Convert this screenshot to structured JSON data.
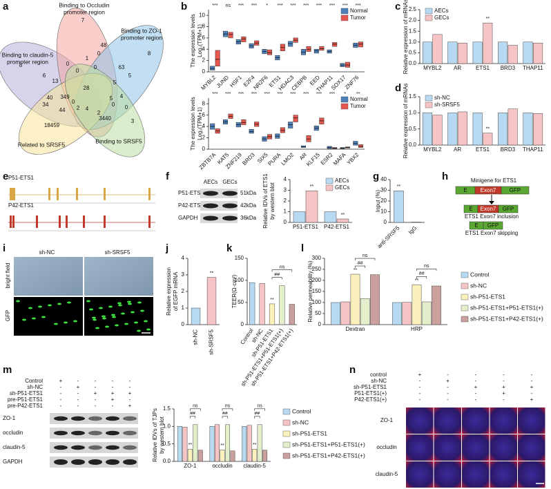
{
  "panel_labels": [
    "a",
    "b",
    "c",
    "d",
    "e",
    "f",
    "g",
    "h",
    "i",
    "j",
    "k",
    "l",
    "m",
    "n"
  ],
  "venn": {
    "sets": [
      [
        "Binding to Occludin",
        "promoter region"
      ],
      [
        "Binding to ZO-1",
        "promoter region"
      ],
      [
        "Binding to claudin-5",
        "promoter region"
      ],
      [
        "Related to SRSF5"
      ],
      [
        "Binding to SRSF5"
      ]
    ],
    "counts": [
      7,
      8,
      8,
      3,
      18459,
      0,
      1,
      0,
      48,
      6,
      13,
      0,
      0,
      63,
      5,
      5,
      28,
      40,
      349,
      5,
      4,
      0,
      34,
      44,
      2,
      4,
      2,
      3440,
      0,
      0
    ]
  },
  "e": {
    "tracks": [
      "P51-ETS1",
      "P42-ETS1"
    ]
  },
  "f_blot": {
    "columns": [
      "AECs",
      "GECs"
    ],
    "rows": [
      [
        "P51-ETS1",
        "51kDa"
      ],
      [
        "P42-ETS1",
        "42kDa"
      ],
      [
        "GAPDH",
        "36kDa"
      ]
    ]
  },
  "h": {
    "title": "Minigene for ETS1",
    "exon": "E",
    "target": "Exon7",
    "reporter": "GFP",
    "inclusion": "ETS1 Exon7 inclusion",
    "skipping": "ETS1 Exon7 skipping"
  },
  "i": {
    "columns": [
      "sh-NC",
      "sh-SRSF5"
    ],
    "rows": [
      "bright field",
      "GFP"
    ]
  },
  "m_blot": {
    "conditions": [
      "Control",
      "sh-NC",
      "sh-P51-ETS1",
      "pre-P51-ETS1",
      "pre-P42-ETS1"
    ],
    "signs": [
      [
        "+",
        "-",
        "-",
        "-",
        "-"
      ],
      [
        "-",
        "+",
        "-",
        "-",
        "-"
      ],
      [
        "-",
        "-",
        "+",
        "+",
        "+"
      ],
      [
        "-",
        "-",
        "-",
        "+",
        "-"
      ],
      [
        "-",
        "-",
        "-",
        "-",
        "+"
      ]
    ],
    "bands": [
      "ZO-1",
      "occludin",
      "claudin-5",
      "GAPDH"
    ]
  },
  "n": {
    "conditions": [
      "control",
      "sh-NC",
      "sh-P51-ETS1",
      "P51-ETS1(+)",
      "P42-ETS1(+)"
    ],
    "signs": [
      [
        "+",
        "-",
        "-",
        "-",
        "-"
      ],
      [
        "-",
        "+",
        "-",
        "-",
        "-"
      ],
      [
        "-",
        "-",
        "+",
        "+",
        "+"
      ],
      [
        "-",
        "-",
        "-",
        "+",
        "-"
      ],
      [
        "-",
        "-",
        "-",
        "-",
        "+"
      ]
    ],
    "rows": [
      "ZO-1",
      "occludin",
      "claudin-5"
    ]
  },
  "chart_data": [
    {
      "type": "box",
      "ylabel": [
        "The expression levels",
        "Log₂(TPM+1)"
      ],
      "legend": "upper-right",
      "categories": [
        "MYBL2",
        "JUND",
        "HSF1",
        "E2F4",
        "NR2F6",
        "ETS1",
        "HDAC3",
        "CEBPB",
        "EED",
        "THAP11",
        "SOX17",
        "ZNF76"
      ],
      "significance": [
        "***",
        "ns",
        "***",
        "***",
        "*",
        "***",
        "***",
        "***",
        "***",
        "***",
        "***",
        "***"
      ],
      "ylim": [
        0,
        11
      ],
      "yticks": [
        0,
        2,
        4,
        6,
        8,
        10
      ],
      "series": [
        {
          "name": "Normal",
          "color": "#4f81bd",
          "values": [
            [
              0.3,
              0.6,
              1.0
            ],
            [
              6.2,
              6.7,
              7.2
            ],
            [
              4.9,
              5.3,
              5.7
            ],
            [
              4.2,
              4.6,
              5.0
            ],
            [
              3.2,
              3.6,
              4.0
            ],
            [
              2.1,
              2.5,
              2.9
            ],
            [
              4.5,
              5.0,
              5.4
            ],
            [
              3.0,
              3.5,
              4.0
            ],
            [
              3.3,
              3.7,
              4.0
            ],
            [
              3.3,
              3.6,
              3.9
            ],
            [
              0.9,
              1.2,
              1.5
            ],
            [
              4.3,
              4.7,
              5.1
            ]
          ]
        },
        {
          "name": "Tumor",
          "color": "#e8574e",
          "values": [
            [
              1.0,
              2.2,
              3.8
            ],
            [
              6.0,
              6.6,
              7.0
            ],
            [
              5.3,
              5.8,
              6.2
            ],
            [
              4.7,
              5.1,
              5.5
            ],
            [
              3.0,
              3.4,
              3.9
            ],
            [
              3.7,
              4.3,
              4.9
            ],
            [
              5.2,
              5.6,
              6.0
            ],
            [
              3.6,
              4.0,
              4.5
            ],
            [
              3.8,
              4.1,
              4.5
            ],
            [
              4.5,
              4.9,
              5.2
            ],
            [
              0.8,
              1.2,
              1.7
            ],
            [
              4.4,
              4.9,
              5.3
            ]
          ]
        }
      ]
    },
    {
      "type": "box",
      "ylabel": [
        "The expression levels",
        "Log₂(TPM+1)"
      ],
      "legend": "upper-right",
      "categories": [
        "ZBTB7A",
        "KAT5",
        "ZNF219",
        "BRD3",
        "SIX5",
        "PURA",
        "LMO2",
        "AR",
        "KLF15",
        "ESR2",
        "MAFA",
        "YBX2"
      ],
      "significance": [
        "***",
        "***",
        "***",
        "***",
        "***",
        "***",
        "***",
        "***",
        "***",
        "***",
        "*",
        "**"
      ],
      "ylim": [
        0,
        9
      ],
      "yticks": [
        0,
        2,
        4,
        6,
        8
      ],
      "series": [
        {
          "name": "Normal",
          "color": "#4f81bd",
          "values": [
            [
              3.5,
              4.0,
              4.5
            ],
            [
              4.4,
              4.8,
              5.2
            ],
            [
              3.9,
              4.3,
              4.7
            ],
            [
              2.8,
              3.1,
              3.5
            ],
            [
              1.4,
              1.8,
              2.2
            ],
            [
              1.9,
              2.3,
              2.7
            ],
            [
              3.7,
              4.3,
              4.8
            ],
            [
              0.3,
              0.4,
              0.6
            ],
            [
              3.3,
              3.7,
              4.1
            ],
            [
              0.1,
              0.3,
              0.5
            ],
            [
              0.1,
              0.2,
              0.3
            ],
            [
              0.7,
              1.0,
              1.4
            ]
          ]
        },
        {
          "name": "Tumor",
          "color": "#e8574e",
          "values": [
            [
              2.8,
              3.2,
              3.6
            ],
            [
              5.4,
              5.8,
              6.2
            ],
            [
              4.3,
              4.7,
              5.2
            ],
            [
              4.0,
              4.4,
              4.8
            ],
            [
              1.8,
              2.2,
              2.6
            ],
            [
              2.9,
              3.3,
              3.8
            ],
            [
              4.8,
              5.5,
              6.0
            ],
            [
              1.3,
              1.8,
              2.4
            ],
            [
              4.4,
              5.0,
              5.5
            ],
            [
              0.1,
              0.2,
              0.3
            ],
            [
              0.2,
              0.3,
              0.4
            ],
            [
              0.3,
              0.5,
              0.8
            ]
          ]
        }
      ]
    },
    {
      "type": "bar",
      "ylabel": [
        "Relative expression of mRNAs"
      ],
      "legend": "upper-left",
      "categories": [
        "MYBL2",
        "AR",
        "ETS1",
        "BRD3",
        "THAP11"
      ],
      "ylim": [
        0,
        2.5
      ],
      "yticks": [
        {
          "value": 0,
          "label": "0.0"
        },
        0.5,
        {
          "value": 1,
          "label": "1.0"
        },
        1.5,
        {
          "value": 2,
          "label": "2.0"
        },
        2.5
      ],
      "series": [
        {
          "name": "AECs",
          "color": "#b7daf2",
          "values": [
            1,
            1,
            1,
            1,
            1
          ]
        },
        {
          "name": "GECs",
          "color": "#f6c4c4",
          "values": [
            1.35,
            0.95,
            1.88,
            0.85,
            0.95
          ],
          "significance": [
            null,
            null,
            "**",
            null,
            null
          ]
        }
      ]
    },
    {
      "type": "bar",
      "ylabel": [
        "Relative expression of mRNAs"
      ],
      "legend": "upper-left",
      "categories": [
        "MYBL2",
        "AR",
        "ETS1",
        "BRD3",
        "THAP11"
      ],
      "ylim": [
        0,
        1.5
      ],
      "yticks": [
        {
          "value": 0,
          "label": "0.0"
        },
        0.5,
        {
          "value": 1,
          "label": "1.0"
        },
        1.5
      ],
      "series": [
        {
          "name": "sh-NC",
          "color": "#b7daf2",
          "values": [
            1,
            1,
            1,
            1,
            1
          ]
        },
        {
          "name": "sh-SRSF5",
          "color": "#f6c4c4",
          "values": [
            0.93,
            1.03,
            0.37,
            1.12,
            0.98
          ],
          "significance": [
            null,
            null,
            "**",
            null,
            null
          ]
        }
      ]
    },
    {
      "type": "bar",
      "ylabel": [
        "Relative IDVs of ETS1",
        "by western blot"
      ],
      "legend": "upper-right",
      "categories": [
        "P51-ETS1",
        "P42-ETS1"
      ],
      "ylim": [
        0,
        4
      ],
      "yticks": [
        0,
        1,
        2,
        3,
        4
      ],
      "series": [
        {
          "name": "AECs",
          "color": "#b7daf2",
          "values": [
            1,
            1
          ]
        },
        {
          "name": "GECs",
          "color": "#f6c4c4",
          "values": [
            2.95,
            0.32
          ],
          "significance": [
            "**",
            "**"
          ]
        }
      ]
    },
    {
      "type": "bar",
      "ylabel": [
        "Input (%)"
      ],
      "categories": [
        "anti-SRSF5",
        "IgG"
      ],
      "colors": [
        "#b7daf2",
        "#f6c4c4"
      ],
      "ylim": [
        0,
        40
      ],
      "yticks": [
        0,
        10,
        20,
        30,
        40
      ],
      "series": [
        {
          "values": [
            29.5,
            0.3
          ],
          "significance": [
            "**",
            null
          ]
        }
      ]
    },
    {
      "type": "bar",
      "ylabel": [
        "Relative expression",
        "of EGFP mRNA"
      ],
      "categories": [
        "sh-NC",
        "sh-SRSF5"
      ],
      "colors": [
        "#b7daf2",
        "#f6c4c4"
      ],
      "ylim": [
        0,
        4
      ],
      "yticks": [
        0,
        1,
        2,
        3,
        4
      ],
      "series": [
        {
          "values": [
            1,
            2.85
          ],
          "significance": [
            null,
            "**"
          ]
        }
      ]
    },
    {
      "type": "bar",
      "ylabel": [
        "TEER(Ω·cm²)"
      ],
      "categories": [
        "Control",
        "sh-NC",
        "sh-P51-ETS1",
        "sh-P51-ETS1+P51-ETS1(+)",
        "sh-P51-ETS1+P42-ETS1(+)"
      ],
      "colors": [
        "#b7daf2",
        "#f6c4c4",
        "#fbf1bd",
        "#e3efcb",
        "#c9a09e"
      ],
      "ylim": [
        0,
        150
      ],
      "yticks": [
        0,
        50,
        100,
        150
      ],
      "series": [
        {
          "values": [
            95,
            93,
            47,
            88,
            46
          ],
          "significance": [
            null,
            null,
            "**",
            null,
            null
          ]
        }
      ],
      "comparisons": [
        "##",
        "ns"
      ]
    },
    {
      "type": "bar",
      "ylabel": [
        "Relative permeability (%)"
      ],
      "legend": "right",
      "categories": [
        "Dextran",
        "HRP"
      ],
      "ylim": [
        0,
        300
      ],
      "yticks": [
        0,
        50,
        100,
        150,
        200,
        250,
        300
      ],
      "series": [
        {
          "name": "Control",
          "color": "#b7daf2",
          "values": [
            100,
            100
          ]
        },
        {
          "name": "sh-NC",
          "color": "#f6c4c4",
          "values": [
            103,
            101
          ]
        },
        {
          "name": "sh-P51-ETS1",
          "color": "#fbf1bd",
          "values": [
            228,
            180
          ],
          "significance": [
            "**",
            "**"
          ]
        },
        {
          "name": "sh-P51-ETS1+P51-ETS1(+)",
          "color": "#e3efcb",
          "values": [
            118,
            103
          ]
        },
        {
          "name": "sh-P51-ETS1+P42-ETS1(+)",
          "color": "#c9a09e",
          "values": [
            226,
            175
          ]
        }
      ],
      "comparisons": [
        [
          "##",
          "ns"
        ],
        [
          "##",
          "ns"
        ]
      ]
    },
    {
      "type": "bar",
      "ylabel": [
        "Relative IDVs of TJPs",
        "by western blot"
      ],
      "legend": "right",
      "categories": [
        "ZO-1",
        "occludin",
        "claudin-5"
      ],
      "ylim": [
        0,
        1.5
      ],
      "yticks": [
        {
          "value": 0,
          "label": "0.0"
        },
        0.5,
        {
          "value": 1,
          "label": "1.0"
        },
        1.5
      ],
      "series": [
        {
          "name": "Control",
          "color": "#b7daf2",
          "values": [
            1,
            1,
            1
          ]
        },
        {
          "name": "sh-NC",
          "color": "#f6c4c4",
          "values": [
            0.98,
            1.05,
            1.03
          ]
        },
        {
          "name": "sh-P51-ETS1",
          "color": "#fbf1bd",
          "values": [
            0.35,
            0.33,
            0.35
          ],
          "significance": [
            "**",
            "**",
            "**"
          ]
        },
        {
          "name": "sh-P51-ETS1+P51-ETS1(+)",
          "color": "#e3efcb",
          "values": [
            1.05,
            1.05,
            1.05
          ]
        },
        {
          "name": "sh-P51-ETS1+P42-ETS1(+)",
          "color": "#c9a09e",
          "values": [
            0.32,
            0.3,
            0.32
          ]
        }
      ],
      "comparisons": [
        [
          "##",
          "ns"
        ],
        [
          "##",
          "ns"
        ],
        [
          "##",
          "ns"
        ]
      ]
    }
  ]
}
